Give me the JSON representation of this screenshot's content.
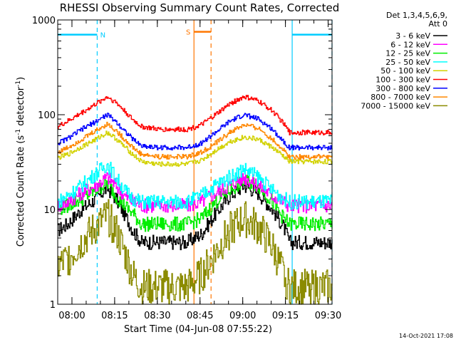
{
  "chart_data": {
    "type": "line",
    "title": "RHESSI Observing Summary Count Rates, Corrected",
    "xlabel": "Start Time (04-Jun-08 07:55:22)",
    "ylabel_main": "Corrected Count Rate (s",
    "ylabel_sup1": "-1",
    "ylabel_mid": " detector",
    "ylabel_sup2": "-1",
    "ylabel_end": ")",
    "yscale": "log",
    "ylim": [
      1,
      1000
    ],
    "xlim_minutes": [
      -0.37,
      96.0
    ],
    "x_unit": "minutes since 07:55:22",
    "x_ticks": [
      {
        "label": "08:00",
        "minutes": 4.63
      },
      {
        "label": "08:15",
        "minutes": 19.63
      },
      {
        "label": "08:30",
        "minutes": 34.63
      },
      {
        "label": "08:45",
        "minutes": 49.63
      },
      {
        "label": "09:00",
        "minutes": 64.63
      },
      {
        "label": "09:15",
        "minutes": 79.63
      },
      {
        "label": "09:30",
        "minutes": 94.63
      }
    ],
    "y_ticks": [
      {
        "label": "1",
        "value": 1
      },
      {
        "label": "10",
        "value": 10
      },
      {
        "label": "100",
        "value": 100
      },
      {
        "label": "1000",
        "value": 1000
      }
    ],
    "legend": {
      "header1": "Det 1,3,4,5,6,9,",
      "header2": "Att 0",
      "position": "right"
    },
    "series": [
      {
        "name": "3 - 6 keV",
        "color": "#000000",
        "points": [
          [
            -0.4,
            6
          ],
          [
            3,
            7
          ],
          [
            8,
            10
          ],
          [
            13,
            13
          ],
          [
            17,
            17
          ],
          [
            20,
            13
          ],
          [
            23,
            9
          ],
          [
            26,
            6
          ],
          [
            29,
            4.5
          ],
          [
            45,
            4.5
          ],
          [
            50,
            5.5
          ],
          [
            55,
            9
          ],
          [
            60,
            14
          ],
          [
            65,
            18
          ],
          [
            70,
            15
          ],
          [
            75,
            10
          ],
          [
            79,
            6.5
          ],
          [
            81,
            4.5
          ],
          [
            96,
            4.5
          ]
        ]
      },
      {
        "name": "6 - 12 keV",
        "color": "#ff00ff",
        "points": [
          [
            -0.4,
            11
          ],
          [
            3,
            12
          ],
          [
            8,
            15
          ],
          [
            13,
            18
          ],
          [
            17,
            22
          ],
          [
            20,
            18
          ],
          [
            23,
            14
          ],
          [
            26,
            12
          ],
          [
            29,
            11
          ],
          [
            45,
            11
          ],
          [
            50,
            12
          ],
          [
            55,
            15
          ],
          [
            60,
            18
          ],
          [
            65,
            22
          ],
          [
            70,
            18
          ],
          [
            75,
            14
          ],
          [
            79,
            12
          ],
          [
            81,
            11
          ],
          [
            96,
            11
          ]
        ]
      },
      {
        "name": "12 - 25 keV",
        "color": "#00ee00",
        "points": [
          [
            -0.4,
            10
          ],
          [
            3,
            11
          ],
          [
            8,
            13
          ],
          [
            13,
            16
          ],
          [
            17,
            19
          ],
          [
            20,
            14
          ],
          [
            23,
            11
          ],
          [
            26,
            9
          ],
          [
            29,
            7
          ],
          [
            45,
            7
          ],
          [
            50,
            8
          ],
          [
            55,
            12
          ],
          [
            60,
            16
          ],
          [
            65,
            20
          ],
          [
            70,
            18
          ],
          [
            75,
            12
          ],
          [
            79,
            8
          ],
          [
            81,
            7
          ],
          [
            96,
            7
          ]
        ]
      },
      {
        "name": "25 - 50 keV",
        "color": "#00ffff",
        "points": [
          [
            -0.4,
            12
          ],
          [
            3,
            14
          ],
          [
            8,
            18
          ],
          [
            13,
            24
          ],
          [
            17,
            30
          ],
          [
            20,
            22
          ],
          [
            23,
            16
          ],
          [
            26,
            13
          ],
          [
            29,
            12
          ],
          [
            45,
            12
          ],
          [
            50,
            14
          ],
          [
            55,
            18
          ],
          [
            60,
            22
          ],
          [
            65,
            27
          ],
          [
            70,
            22
          ],
          [
            75,
            16
          ],
          [
            79,
            13
          ],
          [
            81,
            12
          ],
          [
            96,
            12
          ]
        ]
      },
      {
        "name": "50 - 100 keV",
        "color": "#d2d200",
        "points": [
          [
            -0.4,
            35
          ],
          [
            3,
            38
          ],
          [
            8,
            46
          ],
          [
            13,
            55
          ],
          [
            17,
            65
          ],
          [
            20,
            56
          ],
          [
            23,
            46
          ],
          [
            26,
            38
          ],
          [
            29,
            32
          ],
          [
            35,
            30
          ],
          [
            45,
            30
          ],
          [
            50,
            33
          ],
          [
            55,
            42
          ],
          [
            60,
            52
          ],
          [
            65,
            58
          ],
          [
            70,
            55
          ],
          [
            75,
            45
          ],
          [
            79,
            36
          ],
          [
            81,
            32
          ],
          [
            96,
            32
          ]
        ]
      },
      {
        "name": "100 - 300 keV",
        "color": "#ff0000",
        "points": [
          [
            -0.4,
            75
          ],
          [
            3,
            85
          ],
          [
            8,
            105
          ],
          [
            13,
            130
          ],
          [
            17,
            155
          ],
          [
            20,
            135
          ],
          [
            23,
            110
          ],
          [
            26,
            88
          ],
          [
            29,
            75
          ],
          [
            35,
            70
          ],
          [
            45,
            70
          ],
          [
            50,
            78
          ],
          [
            55,
            100
          ],
          [
            60,
            130
          ],
          [
            65,
            155
          ],
          [
            70,
            140
          ],
          [
            75,
            110
          ],
          [
            79,
            80
          ],
          [
            81,
            65
          ],
          [
            96,
            65
          ]
        ]
      },
      {
        "name": "300 - 800 keV",
        "color": "#0000ff",
        "points": [
          [
            -0.4,
            50
          ],
          [
            3,
            56
          ],
          [
            8,
            70
          ],
          [
            13,
            85
          ],
          [
            17,
            100
          ],
          [
            20,
            85
          ],
          [
            23,
            68
          ],
          [
            26,
            55
          ],
          [
            29,
            47
          ],
          [
            35,
            45
          ],
          [
            45,
            45
          ],
          [
            50,
            50
          ],
          [
            55,
            65
          ],
          [
            60,
            85
          ],
          [
            65,
            100
          ],
          [
            70,
            90
          ],
          [
            75,
            70
          ],
          [
            79,
            52
          ],
          [
            81,
            45
          ],
          [
            96,
            45
          ]
        ]
      },
      {
        "name": "800 - 7000 keV",
        "color": "#ff8800",
        "points": [
          [
            -0.4,
            40
          ],
          [
            3,
            45
          ],
          [
            8,
            55
          ],
          [
            13,
            68
          ],
          [
            17,
            80
          ],
          [
            20,
            68
          ],
          [
            23,
            55
          ],
          [
            26,
            45
          ],
          [
            29,
            38
          ],
          [
            35,
            36
          ],
          [
            45,
            36
          ],
          [
            50,
            40
          ],
          [
            55,
            50
          ],
          [
            60,
            65
          ],
          [
            65,
            78
          ],
          [
            70,
            72
          ],
          [
            75,
            55
          ],
          [
            79,
            42
          ],
          [
            81,
            36
          ],
          [
            96,
            36
          ]
        ]
      },
      {
        "name": "7000 - 15000 keV",
        "color": "#8b8b00",
        "points": [
          [
            -0.4,
            2.5
          ],
          [
            3,
            3
          ],
          [
            8,
            4.5
          ],
          [
            13,
            6.5
          ],
          [
            17,
            8.5
          ],
          [
            20,
            6
          ],
          [
            23,
            3.5
          ],
          [
            26,
            2
          ],
          [
            29,
            1.5
          ],
          [
            45,
            1.5
          ],
          [
            50,
            2
          ],
          [
            55,
            3.5
          ],
          [
            60,
            6
          ],
          [
            65,
            8
          ],
          [
            70,
            6.5
          ],
          [
            75,
            4
          ],
          [
            79,
            2
          ],
          [
            81,
            1.5
          ],
          [
            96,
            1.5
          ]
        ]
      }
    ],
    "flags": [
      {
        "label": "N",
        "color": "#00ccff",
        "ranges": [
          [
            -0.4,
            13.5
          ],
          [
            82,
            96.0
          ]
        ],
        "markers": [
          {
            "minutes": 13.5,
            "style": "dashed"
          },
          {
            "minutes": 82,
            "style": "solid"
          },
          {
            "minutes": 96.0,
            "style": "dashed"
          }
        ],
        "bar_value": 700
      },
      {
        "label": "S",
        "color": "#ff7700",
        "ranges": [
          [
            47.5,
            53.5
          ]
        ],
        "markers": [
          {
            "minutes": 47.5,
            "style": "solid"
          },
          {
            "minutes": 53.5,
            "style": "dashed"
          }
        ],
        "bar_value": 750
      }
    ],
    "generated": "14-Oct-2021 17:08"
  }
}
